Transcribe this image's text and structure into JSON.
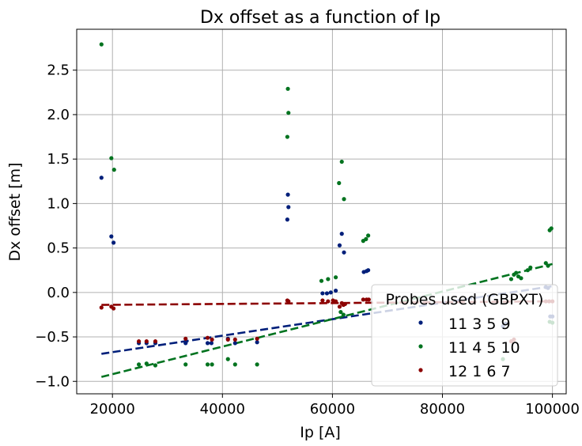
{
  "chart_data": {
    "type": "scatter",
    "title": "Dx offset as a function of Ip",
    "xlabel": "Ip [A]",
    "ylabel": "Dx offset [m]",
    "xlim": [
      13500,
      102500
    ],
    "ylim": [
      -1.14,
      2.96
    ],
    "xticks": [
      20000,
      40000,
      60000,
      80000,
      100000
    ],
    "xtick_labels": [
      "20000",
      "40000",
      "60000",
      "80000",
      "100000"
    ],
    "yticks": [
      -1.0,
      -0.5,
      0.0,
      0.5,
      1.0,
      1.5,
      2.0,
      2.5
    ],
    "ytick_labels": [
      "−1.0",
      "−0.5",
      "0.0",
      "0.5",
      "1.0",
      "1.5",
      "2.0",
      "2.5"
    ],
    "grid": true,
    "legend": {
      "title": "Probes used (GBPXT)",
      "placement": "lower-right"
    },
    "series": [
      {
        "name": "11 3 5 9",
        "color": "#001f7a",
        "points": [
          [
            18000,
            1.29
          ],
          [
            19800,
            0.63
          ],
          [
            20200,
            0.56
          ],
          [
            24800,
            -0.57
          ],
          [
            26200,
            -0.57
          ],
          [
            27800,
            -0.57
          ],
          [
            33300,
            -0.57
          ],
          [
            33400,
            -0.55
          ],
          [
            37300,
            -0.57
          ],
          [
            38000,
            -0.57
          ],
          [
            41000,
            -0.52
          ],
          [
            42300,
            -0.57
          ],
          [
            46300,
            -0.56
          ],
          [
            51800,
            0.82
          ],
          [
            51900,
            1.1
          ],
          [
            52000,
            0.96
          ],
          [
            58200,
            -0.01
          ],
          [
            59000,
            -0.01
          ],
          [
            59700,
            0.0
          ],
          [
            60600,
            0.02
          ],
          [
            61300,
            0.53
          ],
          [
            61700,
            0.66
          ],
          [
            62100,
            0.45
          ],
          [
            65700,
            0.23
          ],
          [
            66200,
            0.24
          ],
          [
            66500,
            0.25
          ],
          [
            91000,
            -0.38
          ],
          [
            91500,
            -0.35
          ],
          [
            98800,
            0.06
          ],
          [
            99200,
            0.05
          ],
          [
            99600,
            -0.27
          ],
          [
            100000,
            -0.27
          ]
        ],
        "fit": [
          [
            18000,
            -0.69
          ],
          [
            100000,
            0.07
          ]
        ]
      },
      {
        "name": "11 4 5 10",
        "color": "#00731f",
        "points": [
          [
            18000,
            2.79
          ],
          [
            19800,
            1.51
          ],
          [
            20300,
            1.38
          ],
          [
            24800,
            -0.81
          ],
          [
            26200,
            -0.8
          ],
          [
            27800,
            -0.82
          ],
          [
            33300,
            -0.81
          ],
          [
            37300,
            -0.81
          ],
          [
            38100,
            -0.81
          ],
          [
            41000,
            -0.75
          ],
          [
            42300,
            -0.81
          ],
          [
            46300,
            -0.81
          ],
          [
            51800,
            1.75
          ],
          [
            51900,
            2.29
          ],
          [
            52000,
            2.02
          ],
          [
            58000,
            0.13
          ],
          [
            59200,
            0.15
          ],
          [
            60600,
            0.17
          ],
          [
            61200,
            1.23
          ],
          [
            61700,
            1.47
          ],
          [
            62100,
            1.05
          ],
          [
            61500,
            -0.22
          ],
          [
            62000,
            -0.25
          ],
          [
            65600,
            0.58
          ],
          [
            66100,
            0.6
          ],
          [
            66500,
            0.64
          ],
          [
            91000,
            -0.75
          ],
          [
            92500,
            0.15
          ],
          [
            93000,
            0.2
          ],
          [
            93400,
            0.22
          ],
          [
            93800,
            0.18
          ],
          [
            94300,
            0.16
          ],
          [
            95500,
            0.25
          ],
          [
            96000,
            0.28
          ],
          [
            98800,
            0.33
          ],
          [
            99200,
            0.3
          ],
          [
            99500,
            0.7
          ],
          [
            99800,
            0.72
          ],
          [
            99500,
            -0.33
          ],
          [
            100000,
            -0.34
          ]
        ],
        "fit": [
          [
            18000,
            -0.95
          ],
          [
            100000,
            0.32
          ]
        ]
      },
      {
        "name": "12 1 6 7",
        "color": "#8c0000",
        "points": [
          [
            18000,
            -0.17
          ],
          [
            19800,
            -0.16
          ],
          [
            20200,
            -0.18
          ],
          [
            24800,
            -0.55
          ],
          [
            26200,
            -0.55
          ],
          [
            27800,
            -0.55
          ],
          [
            33300,
            -0.52
          ],
          [
            37300,
            -0.51
          ],
          [
            38100,
            -0.53
          ],
          [
            41000,
            -0.53
          ],
          [
            42300,
            -0.53
          ],
          [
            46300,
            -0.52
          ],
          [
            51800,
            -0.09
          ],
          [
            52000,
            -0.1
          ],
          [
            58200,
            -0.09
          ],
          [
            59200,
            -0.1
          ],
          [
            60100,
            -0.09
          ],
          [
            60600,
            -0.1
          ],
          [
            61300,
            -0.16
          ],
          [
            61700,
            -0.12
          ],
          [
            62000,
            -0.14
          ],
          [
            62300,
            -0.13
          ],
          [
            65600,
            -0.08
          ],
          [
            66200,
            -0.08
          ],
          [
            66600,
            -0.08
          ],
          [
            92500,
            -0.55
          ],
          [
            93000,
            -0.53
          ],
          [
            98800,
            -0.1
          ],
          [
            99400,
            -0.1
          ],
          [
            100000,
            -0.1
          ]
        ],
        "fit": [
          [
            18000,
            -0.14
          ],
          [
            100000,
            -0.1
          ]
        ]
      }
    ]
  }
}
